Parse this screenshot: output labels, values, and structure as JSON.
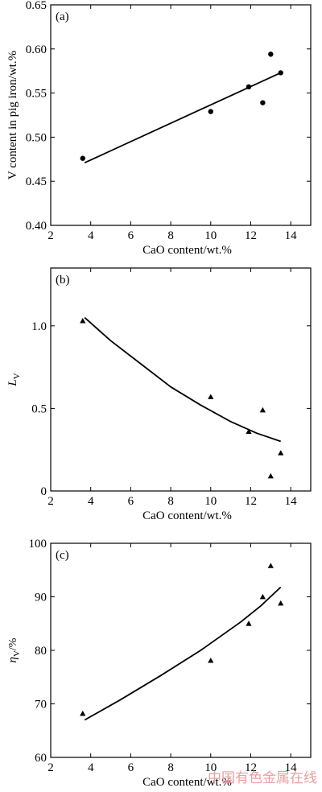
{
  "chart_data": [
    {
      "type": "scatter",
      "panel_label": "(a)",
      "xlabel": "CaO content/wt.%",
      "ylabel": "V content in pig iron/wt.%",
      "xlim": [
        2,
        15
      ],
      "ylim": [
        0.4,
        0.65
      ],
      "xticks": [
        2,
        4,
        6,
        8,
        10,
        12,
        14
      ],
      "yticks": [
        "0.40",
        "0.45",
        "0.50",
        "0.55",
        "0.60",
        "0.65"
      ],
      "marker": "circle",
      "points": [
        [
          3.6,
          0.476
        ],
        [
          10.0,
          0.529
        ],
        [
          11.9,
          0.557
        ],
        [
          12.6,
          0.539
        ],
        [
          13.0,
          0.594
        ],
        [
          13.5,
          0.573
        ]
      ],
      "fit_line": [
        [
          3.7,
          0.471
        ],
        [
          13.5,
          0.573
        ]
      ]
    },
    {
      "type": "scatter",
      "panel_label": "(b)",
      "xlabel": "CaO content/wt.%",
      "ylabel_main": "L",
      "ylabel_sub": "V",
      "xlim": [
        2,
        15
      ],
      "ylim": [
        0,
        1.35
      ],
      "xticks": [
        2,
        4,
        6,
        8,
        10,
        12,
        14
      ],
      "yticks": [
        "0",
        "0.5",
        "1.0"
      ],
      "marker": "triangle",
      "points": [
        [
          3.6,
          1.03
        ],
        [
          10.0,
          0.57
        ],
        [
          11.9,
          0.36
        ],
        [
          12.6,
          0.49
        ],
        [
          13.0,
          0.09
        ],
        [
          13.5,
          0.23
        ]
      ],
      "fit_curve": [
        [
          3.7,
          1.05
        ],
        [
          5.0,
          0.91
        ],
        [
          6.5,
          0.77
        ],
        [
          8.0,
          0.63
        ],
        [
          9.5,
          0.52
        ],
        [
          11.0,
          0.42
        ],
        [
          12.3,
          0.35
        ],
        [
          13.5,
          0.3
        ]
      ]
    },
    {
      "type": "scatter",
      "panel_label": "(c)",
      "xlabel": "CaO content/wt.%",
      "ylabel_main": "η",
      "ylabel_sub": "V",
      "ylabel_unit": "/%",
      "xlim": [
        2,
        15
      ],
      "ylim": [
        60,
        100
      ],
      "xticks": [
        2,
        4,
        6,
        8,
        10,
        12,
        14
      ],
      "yticks": [
        "60",
        "70",
        "80",
        "90",
        "100"
      ],
      "marker": "triangle",
      "points": [
        [
          3.6,
          68.2
        ],
        [
          10.0,
          78.1
        ],
        [
          11.9,
          85.0
        ],
        [
          12.6,
          90.0
        ],
        [
          13.0,
          95.8
        ],
        [
          13.5,
          88.8
        ]
      ],
      "fit_curve": [
        [
          3.7,
          67.0
        ],
        [
          5.5,
          70.8
        ],
        [
          7.5,
          75.3
        ],
        [
          9.5,
          80.0
        ],
        [
          11.5,
          85.3
        ],
        [
          12.5,
          88.3
        ],
        [
          13.5,
          91.8
        ]
      ]
    }
  ],
  "watermark": "中国有色金属在线"
}
